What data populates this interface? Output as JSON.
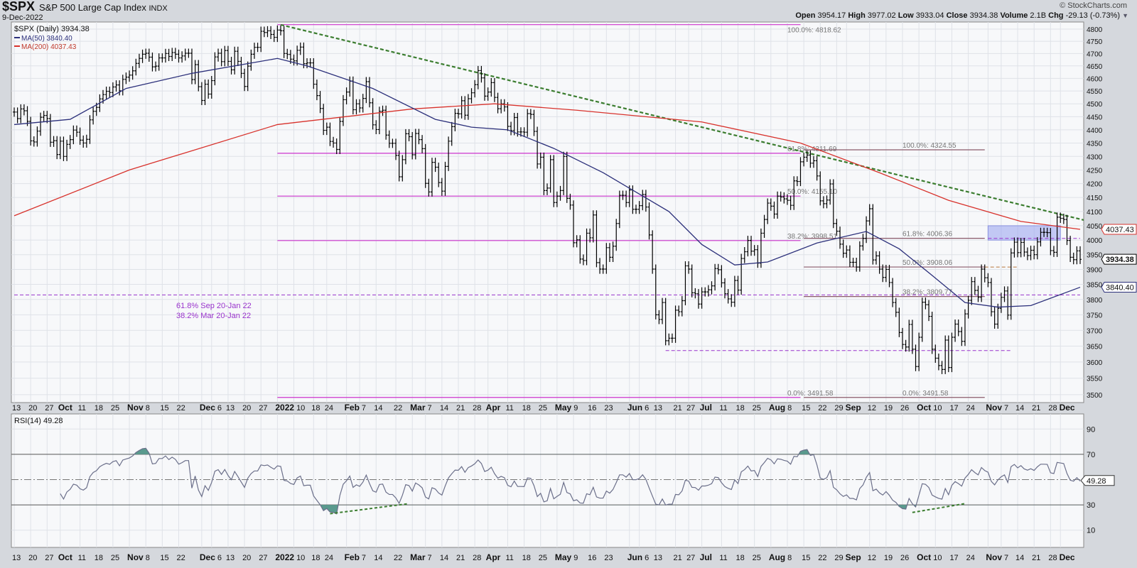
{
  "header": {
    "symbol": "$SPX",
    "name": "S&P 500 Large Cap Index",
    "exchange": "INDX",
    "date": "9-Dec-2022",
    "brand": "© StockCharts.com",
    "open_label": "Open",
    "open": "3954.17",
    "high_label": "High",
    "high": "3977.02",
    "low_label": "Low",
    "low": "3933.04",
    "close_label": "Close",
    "close": "3934.38",
    "volume_label": "Volume",
    "volume": "2.1B",
    "chg_label": "Chg",
    "chg": "-29.13 (-0.73%)",
    "menu_icon": "caret-down-icon"
  },
  "colors": {
    "background": "#d5d8dd",
    "panel": "#f7f8fa",
    "grid": "#dfe2e8",
    "bars": "#000000",
    "ma50": "#2b2f7a",
    "ma200": "#d8322c",
    "trendline": "#3b7d2f",
    "fib": "#cc33cc",
    "fib2": "#8a5a6a",
    "support": "#9933cc",
    "resistance_zone": "#9fa8f0",
    "rsi": "#6b6f8a",
    "rsi_fill": "#5a9a8e",
    "annotation_text": "#9933cc"
  },
  "legend": {
    "price": "$SPX (Daily) 3934.38",
    "ma50": "MA(50) 3840.40",
    "ma200": "MA(200) 4037.43",
    "rsi": "RSI(14) 49.28"
  },
  "chart_data": [
    {
      "type": "ohlc",
      "scale": "log",
      "ylim": [
        3480,
        4830
      ],
      "yticks": [
        3500,
        3550,
        3600,
        3650,
        3700,
        3750,
        3800,
        3850,
        3900,
        3950,
        4000,
        4050,
        4100,
        4150,
        4200,
        4250,
        4300,
        4350,
        4400,
        4450,
        4500,
        4550,
        4600,
        4650,
        4700,
        4750,
        4800
      ],
      "grid": true,
      "start_date": "2021-09-13",
      "close": [
        4468,
        4443,
        4480,
        4473,
        4432,
        4358,
        4354,
        4395,
        4448,
        4455,
        4443,
        4353,
        4359,
        4307,
        4357,
        4300,
        4345,
        4363,
        4399,
        4391,
        4361,
        4350,
        4364,
        4438,
        4471,
        4486,
        4519,
        4536,
        4549,
        4544,
        4566,
        4574,
        4551,
        4596,
        4605,
        4613,
        4630,
        4660,
        4680,
        4697,
        4701,
        4685,
        4646,
        4649,
        4682,
        4682,
        4700,
        4688,
        4704,
        4697,
        4682,
        4690,
        4701,
        4701,
        4595,
        4655,
        4567,
        4513,
        4577,
        4538,
        4591,
        4686,
        4701,
        4667,
        4712,
        4668,
        4634,
        4709,
        4668,
        4620,
        4568,
        4649,
        4697,
        4725,
        4725,
        4791,
        4786,
        4793,
        4778,
        4766,
        4796,
        4793,
        4700,
        4696,
        4677,
        4670,
        4713,
        4726,
        4659,
        4662,
        4662,
        4577,
        4532,
        4482,
        4398,
        4410,
        4356,
        4350,
        4326,
        4432,
        4516,
        4546,
        4589,
        4477,
        4500,
        4484,
        4521,
        4587,
        4504,
        4419,
        4401,
        4471,
        4475,
        4380,
        4349,
        4349,
        4304,
        4225,
        4288,
        4385,
        4374,
        4306,
        4386,
        4363,
        4329,
        4201,
        4170,
        4278,
        4260,
        4204,
        4173,
        4263,
        4357,
        4412,
        4463,
        4461,
        4512,
        4456,
        4520,
        4543,
        4575,
        4631,
        4602,
        4530,
        4546,
        4583,
        4525,
        4481,
        4500,
        4488,
        4413,
        4397,
        4447,
        4392,
        4392,
        4391,
        4462,
        4459,
        4394,
        4272,
        4297,
        4175,
        4184,
        4288,
        4132,
        4155,
        4175,
        4300,
        4147,
        4123,
        3991,
        4001,
        3935,
        3930,
        4024,
        4008,
        4088,
        3923,
        3901,
        3901,
        3974,
        3941,
        3979,
        4058,
        4158,
        4158,
        4132,
        4177,
        4108,
        4108,
        4121,
        4161,
        4116,
        4018,
        3901,
        3750,
        3735,
        3790,
        3667,
        3675,
        3675,
        3765,
        3760,
        3796,
        3912,
        3901,
        3822,
        3819,
        3785,
        3825,
        3825,
        3832,
        3845,
        3903,
        3899,
        3855,
        3819,
        3802,
        3791,
        3863,
        3831,
        3937,
        3960,
        3999,
        3962,
        3967,
        3921,
        4024,
        4072,
        4130,
        4119,
        4091,
        4155,
        4152,
        4145,
        4140,
        4122,
        4210,
        4208,
        4280,
        4297,
        4305,
        4275,
        4284,
        4228,
        4138,
        4128,
        4141,
        4199,
        4058,
        4031,
        3986,
        3955,
        3966,
        3924,
        3924,
        3908,
        3980,
        4006,
        4067,
        4110,
        3932,
        3946,
        3901,
        3873,
        3900,
        3856,
        3790,
        3758,
        3693,
        3655,
        3647,
        3719,
        3640,
        3586,
        3678,
        3791,
        3783,
        3745,
        3640,
        3612,
        3589,
        3577,
        3669,
        3583,
        3678,
        3720,
        3696,
        3665,
        3753,
        3797,
        3859,
        3830,
        3807,
        3901,
        3872,
        3856,
        3760,
        3720,
        3771,
        3807,
        3828,
        3749,
        3956,
        3993,
        3957,
        3992,
        3959,
        3947,
        3965,
        3950,
        3994,
        4027,
        4027,
        4026,
        3964,
        3958,
        4080,
        4076,
        4072,
        3999,
        3941,
        3933,
        3963,
        3934
      ],
      "ma50": [
        [
          "2021-09-13",
          4420
        ],
        [
          "2021-10-06",
          4440
        ],
        [
          "2021-10-29",
          4560
        ],
        [
          "2021-11-26",
          4620
        ],
        [
          "2022-01-03",
          4680
        ],
        [
          "2022-01-14",
          4650
        ],
        [
          "2022-02-11",
          4560
        ],
        [
          "2022-03-10",
          4440
        ],
        [
          "2022-03-25",
          4410
        ],
        [
          "2022-04-11",
          4400
        ],
        [
          "2022-04-29",
          4330
        ],
        [
          "2022-05-20",
          4240
        ],
        [
          "2022-06-17",
          4100
        ],
        [
          "2022-07-01",
          3985
        ],
        [
          "2022-07-15",
          3915
        ],
        [
          "2022-07-29",
          3925
        ],
        [
          "2022-08-19",
          3990
        ],
        [
          "2022-09-09",
          4030
        ],
        [
          "2022-09-23",
          3970
        ],
        [
          "2022-10-07",
          3880
        ],
        [
          "2022-10-21",
          3790
        ],
        [
          "2022-11-04",
          3775
        ],
        [
          "2022-11-18",
          3780
        ],
        [
          "2022-12-09",
          3840.4
        ]
      ],
      "ma200": [
        [
          "2021-09-13",
          4085
        ],
        [
          "2021-11-01",
          4250
        ],
        [
          "2022-01-03",
          4420
        ],
        [
          "2022-03-01",
          4480
        ],
        [
          "2022-04-05",
          4500
        ],
        [
          "2022-05-10",
          4475
        ],
        [
          "2022-07-01",
          4430
        ],
        [
          "2022-08-12",
          4350
        ],
        [
          "2022-09-15",
          4240
        ],
        [
          "2022-10-14",
          4140
        ],
        [
          "2022-11-15",
          4065
        ],
        [
          "2022-12-09",
          4037.43
        ]
      ],
      "trendline": {
        "from": [
          "2022-01-04",
          4818
        ],
        "to": [
          "2022-12-09",
          4070
        ]
      },
      "fib_sets": [
        {
          "from": "2022-01-03",
          "to": "2022-08-12",
          "label_at": "2022-08-08",
          "levels": [
            {
              "label": "100.0%: 4818.62",
              "value": 4818.62
            },
            {
              "label": "61.8%: 4311.69",
              "value": 4311.69
            },
            {
              "label": "50.0%: 4155.10",
              "value": 4155.1
            },
            {
              "label": "38.2%: 3998.51",
              "value": 3998.51
            },
            {
              "label": "0.0%: 3491.58",
              "value": 3491.58
            }
          ]
        },
        {
          "from": "2022-08-15",
          "to": "2022-10-31",
          "label_at": "2022-09-26",
          "levels": [
            {
              "label": "100.0%: 4324.55",
              "value": 4324.55
            },
            {
              "label": "61.8%: 4006.36",
              "value": 4006.36
            },
            {
              "label": "50.0%: 3908.06",
              "value": 3908.06
            },
            {
              "label": "38.2%: 3809.77",
              "value": 3809.77
            },
            {
              "label": "0.0%: 3491.58",
              "value": 3491.58
            }
          ]
        }
      ],
      "support_lines": [
        {
          "value": 3815,
          "from": "2021-09-13",
          "to": "2022-12-09"
        },
        {
          "value": 3636,
          "from": "2022-06-16",
          "to": "2022-11-10"
        },
        {
          "value": 4006,
          "from": "2022-11-01",
          "to": "2022-12-09"
        },
        {
          "value": 3908,
          "from": "2022-10-31",
          "to": "2022-11-14"
        }
      ],
      "resistance_zone": {
        "from": "2022-11-01",
        "to": "2022-12-01",
        "low": 4000,
        "high": 4050
      },
      "annotations": [
        "61.8% Sep 20-Jan 22",
        "38.2% Mar 20-Jan 22"
      ],
      "price_tags": [
        {
          "label": "4037.43",
          "value": 4037.43,
          "series": "ma200"
        },
        {
          "label": "3934.38",
          "value": 3934.38,
          "series": "price"
        },
        {
          "label": "3840.40",
          "value": 3840.4,
          "series": "ma50"
        }
      ]
    },
    {
      "type": "line",
      "name": "RSI(14)",
      "ylim": [
        0,
        100
      ],
      "yticks": [
        10,
        30,
        50,
        70,
        90
      ],
      "ytick_labels": [
        "10",
        "30",
        "",
        "70",
        "90"
      ],
      "levels": [
        30,
        50,
        70
      ],
      "last_value": "49.28",
      "divergence_lines": [
        {
          "from": [
            "2022-01-25",
            23
          ],
          "to": [
            "2022-02-28",
            31
          ]
        },
        {
          "from": [
            "2022-09-29",
            24
          ],
          "to": [
            "2022-10-21",
            31
          ]
        }
      ]
    }
  ],
  "xaxis": {
    "ticks": [
      {
        "label": "13",
        "date": "2021-09-13"
      },
      {
        "label": "20",
        "date": "2021-09-20"
      },
      {
        "label": "27",
        "date": "2021-09-27"
      },
      {
        "label": "Oct",
        "date": "2021-10-01",
        "bold": true
      },
      {
        "label": "11",
        "date": "2021-10-11"
      },
      {
        "label": "18",
        "date": "2021-10-18"
      },
      {
        "label": "25",
        "date": "2021-10-25"
      },
      {
        "label": "Nov",
        "date": "2021-11-01",
        "bold": true
      },
      {
        "label": "8",
        "date": "2021-11-08"
      },
      {
        "label": "15",
        "date": "2021-11-15"
      },
      {
        "label": "22",
        "date": "2021-11-22"
      },
      {
        "label": "Dec",
        "date": "2021-12-01",
        "bold": true
      },
      {
        "label": "6",
        "date": "2021-12-06"
      },
      {
        "label": "13",
        "date": "2021-12-13"
      },
      {
        "label": "20",
        "date": "2021-12-20"
      },
      {
        "label": "27",
        "date": "2021-12-27"
      },
      {
        "label": "2022",
        "date": "2022-01-03",
        "bold": true
      },
      {
        "label": "10",
        "date": "2022-01-10"
      },
      {
        "label": "18",
        "date": "2022-01-18"
      },
      {
        "label": "24",
        "date": "2022-01-24"
      },
      {
        "label": "Feb",
        "date": "2022-02-01",
        "bold": true
      },
      {
        "label": "7",
        "date": "2022-02-07"
      },
      {
        "label": "14",
        "date": "2022-02-14"
      },
      {
        "label": "22",
        "date": "2022-02-22"
      },
      {
        "label": "Mar",
        "date": "2022-03-01",
        "bold": true
      },
      {
        "label": "7",
        "date": "2022-03-07"
      },
      {
        "label": "14",
        "date": "2022-03-14"
      },
      {
        "label": "21",
        "date": "2022-03-21"
      },
      {
        "label": "28",
        "date": "2022-03-28"
      },
      {
        "label": "Apr",
        "date": "2022-04-01",
        "bold": true
      },
      {
        "label": "11",
        "date": "2022-04-11"
      },
      {
        "label": "18",
        "date": "2022-04-18"
      },
      {
        "label": "25",
        "date": "2022-04-25"
      },
      {
        "label": "May",
        "date": "2022-05-02",
        "bold": true
      },
      {
        "label": "9",
        "date": "2022-05-09"
      },
      {
        "label": "16",
        "date": "2022-05-16"
      },
      {
        "label": "23",
        "date": "2022-05-23"
      },
      {
        "label": "Jun",
        "date": "2022-06-01",
        "bold": true
      },
      {
        "label": "6",
        "date": "2022-06-06"
      },
      {
        "label": "13",
        "date": "2022-06-13"
      },
      {
        "label": "21",
        "date": "2022-06-21"
      },
      {
        "label": "27",
        "date": "2022-06-27"
      },
      {
        "label": "Jul",
        "date": "2022-07-01",
        "bold": true
      },
      {
        "label": "11",
        "date": "2022-07-11"
      },
      {
        "label": "18",
        "date": "2022-07-18"
      },
      {
        "label": "25",
        "date": "2022-07-25"
      },
      {
        "label": "Aug",
        "date": "2022-08-01",
        "bold": true
      },
      {
        "label": "8",
        "date": "2022-08-08"
      },
      {
        "label": "15",
        "date": "2022-08-15"
      },
      {
        "label": "22",
        "date": "2022-08-22"
      },
      {
        "label": "29",
        "date": "2022-08-29"
      },
      {
        "label": "Sep",
        "date": "2022-09-01",
        "bold": true
      },
      {
        "label": "12",
        "date": "2022-09-12"
      },
      {
        "label": "19",
        "date": "2022-09-19"
      },
      {
        "label": "26",
        "date": "2022-09-26"
      },
      {
        "label": "Oct",
        "date": "2022-10-03",
        "bold": true
      },
      {
        "label": "10",
        "date": "2022-10-10"
      },
      {
        "label": "17",
        "date": "2022-10-17"
      },
      {
        "label": "24",
        "date": "2022-10-24"
      },
      {
        "label": "Nov",
        "date": "2022-11-01",
        "bold": true
      },
      {
        "label": "7",
        "date": "2022-11-07"
      },
      {
        "label": "14",
        "date": "2022-11-14"
      },
      {
        "label": "21",
        "date": "2022-11-21"
      },
      {
        "label": "28",
        "date": "2022-11-28"
      },
      {
        "label": "Dec",
        "date": "2022-12-01",
        "bold": true
      }
    ]
  }
}
